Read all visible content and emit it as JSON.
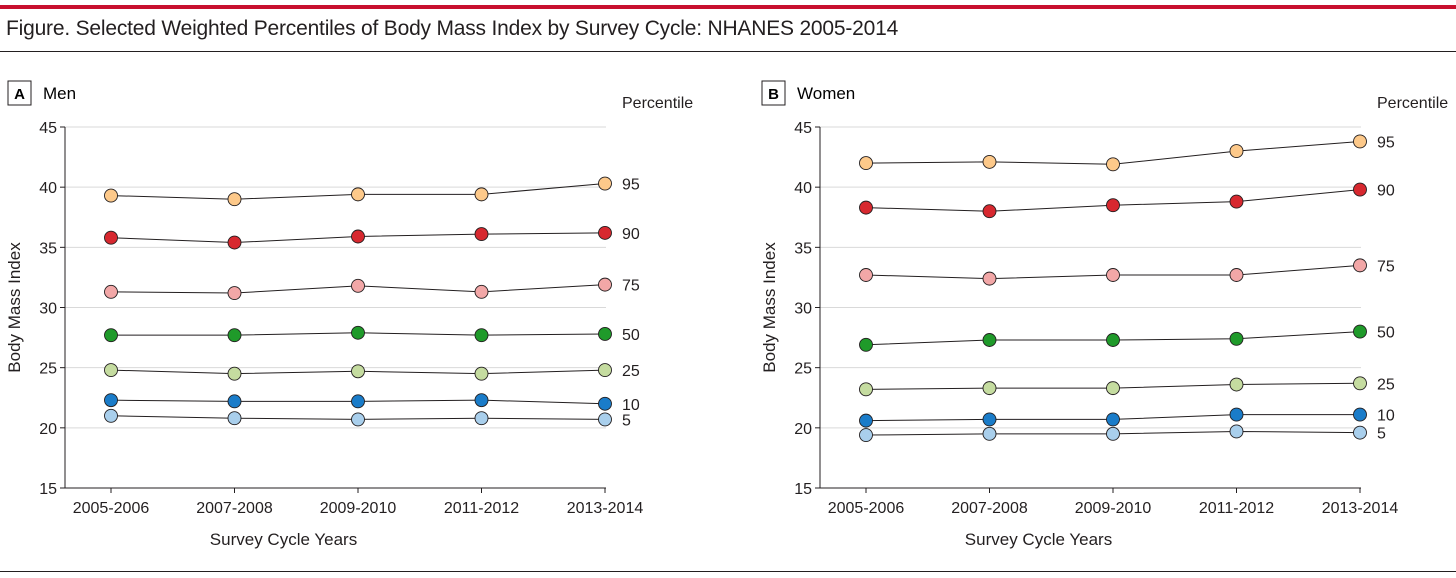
{
  "figure": {
    "title": "Figure. Selected Weighted Percentiles of Body Mass Index by Survey Cycle: NHANES 2005-2014"
  },
  "chart_data": [
    {
      "type": "line",
      "panel_letter": "A",
      "panel_title": "Men",
      "legend_title": "Percentile",
      "xlabel": "Survey Cycle Years",
      "ylabel": "Body Mass Index",
      "categories": [
        "2005-2006",
        "2007-2008",
        "2009-2010",
        "2011-2012",
        "2013-2014"
      ],
      "ylim": [
        15,
        45
      ],
      "yticks": [
        15,
        20,
        25,
        30,
        35,
        40,
        45
      ],
      "grid": "horizontal",
      "series": [
        {
          "name": "95",
          "color": "#fdc98a",
          "values": [
            39.3,
            39.0,
            39.4,
            39.4,
            40.3
          ]
        },
        {
          "name": "90",
          "color": "#d7282f",
          "values": [
            35.8,
            35.4,
            35.9,
            36.1,
            36.2
          ]
        },
        {
          "name": "75",
          "color": "#f2a7a7",
          "values": [
            31.3,
            31.2,
            31.8,
            31.3,
            31.9
          ]
        },
        {
          "name": "50",
          "color": "#1f9a2a",
          "values": [
            27.7,
            27.7,
            27.9,
            27.7,
            27.8
          ]
        },
        {
          "name": "25",
          "color": "#c5dca0",
          "values": [
            24.8,
            24.5,
            24.7,
            24.5,
            24.8
          ]
        },
        {
          "name": "10",
          "color": "#1a7cc9",
          "values": [
            22.3,
            22.2,
            22.2,
            22.3,
            22.0
          ]
        },
        {
          "name": "5",
          "color": "#a9cfec",
          "values": [
            21.0,
            20.8,
            20.7,
            20.8,
            20.7
          ]
        }
      ]
    },
    {
      "type": "line",
      "panel_letter": "B",
      "panel_title": "Women",
      "legend_title": "Percentile",
      "xlabel": "Survey Cycle Years",
      "ylabel": "Body Mass Index",
      "categories": [
        "2005-2006",
        "2007-2008",
        "2009-2010",
        "2011-2012",
        "2013-2014"
      ],
      "ylim": [
        15,
        45
      ],
      "yticks": [
        15,
        20,
        25,
        30,
        35,
        40,
        45
      ],
      "grid": "horizontal",
      "series": [
        {
          "name": "95",
          "color": "#fdc98a",
          "values": [
            42.0,
            42.1,
            41.9,
            43.0,
            43.8
          ]
        },
        {
          "name": "90",
          "color": "#d7282f",
          "values": [
            38.3,
            38.0,
            38.5,
            38.8,
            39.8
          ]
        },
        {
          "name": "75",
          "color": "#f2a7a7",
          "values": [
            32.7,
            32.4,
            32.7,
            32.7,
            33.5
          ]
        },
        {
          "name": "50",
          "color": "#1f9a2a",
          "values": [
            26.9,
            27.3,
            27.3,
            27.4,
            28.0
          ]
        },
        {
          "name": "25",
          "color": "#c5dca0",
          "values": [
            23.2,
            23.3,
            23.3,
            23.6,
            23.7
          ]
        },
        {
          "name": "10",
          "color": "#1a7cc9",
          "values": [
            20.6,
            20.7,
            20.7,
            21.1,
            21.1
          ]
        },
        {
          "name": "5",
          "color": "#a9cfec",
          "values": [
            19.4,
            19.5,
            19.5,
            19.7,
            19.6
          ]
        }
      ]
    }
  ]
}
